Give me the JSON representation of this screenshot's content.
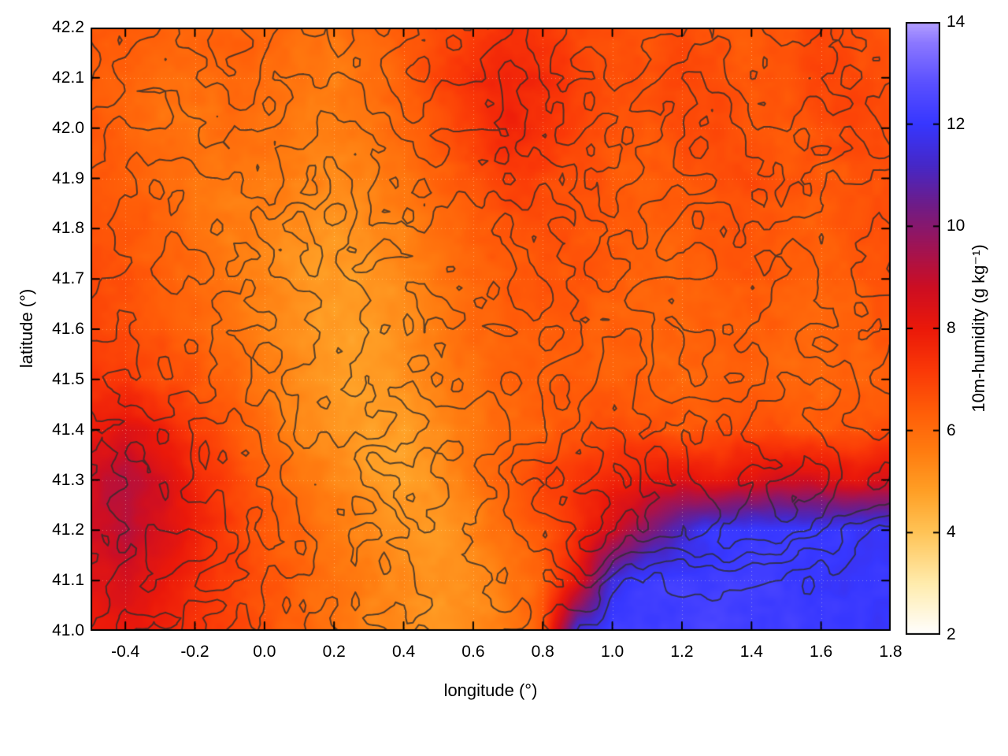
{
  "chart_data": {
    "type": "heatmap",
    "title": "",
    "xlabel": "longitude (°)",
    "ylabel": "latitude (°)",
    "colorbar_label": "10m-humidity (g kg⁻¹)",
    "x_range": [
      -0.5,
      1.8
    ],
    "y_range": [
      41.0,
      42.2
    ],
    "colorbar_range": [
      2,
      14
    ],
    "grid_on": true,
    "x_ticks": {
      "values": [
        -0.4,
        -0.2,
        0.0,
        0.2,
        0.4,
        0.6,
        0.8,
        1.0,
        1.2,
        1.4,
        1.6,
        1.8
      ],
      "labels": [
        "-0.4",
        "-0.2",
        "0.0",
        "0.2",
        "0.4",
        "0.6",
        "0.8",
        "1.0",
        "1.2",
        "1.4",
        "1.6",
        "1.8"
      ]
    },
    "y_ticks": {
      "values": [
        41.0,
        41.1,
        41.2,
        41.3,
        41.4,
        41.5,
        41.6,
        41.7,
        41.8,
        41.9,
        42.0,
        42.1,
        42.2
      ],
      "labels": [
        "41.0",
        "41.1",
        "41.2",
        "41.3",
        "41.4",
        "41.5",
        "41.6",
        "41.7",
        "41.8",
        "41.9",
        "42.0",
        "42.1",
        "42.2"
      ]
    },
    "colorbar_ticks": {
      "values": [
        2,
        4,
        6,
        8,
        10,
        12,
        14
      ],
      "labels": [
        "2",
        "4",
        "6",
        "8",
        "10",
        "12",
        "14"
      ]
    },
    "palette_stops": [
      [
        2.0,
        255,
        255,
        255
      ],
      [
        3.0,
        255,
        236,
        173
      ],
      [
        4.0,
        255,
        196,
        87
      ],
      [
        4.8,
        255,
        160,
        38
      ],
      [
        5.6,
        255,
        124,
        16
      ],
      [
        6.4,
        255,
        92,
        8
      ],
      [
        7.2,
        250,
        56,
        7
      ],
      [
        8.0,
        235,
        25,
        10
      ],
      [
        8.8,
        205,
        14,
        35
      ],
      [
        9.6,
        160,
        20,
        85
      ],
      [
        10.4,
        112,
        28,
        135
      ],
      [
        11.2,
        70,
        40,
        200
      ],
      [
        12.0,
        55,
        55,
        255
      ],
      [
        12.8,
        90,
        80,
        255
      ],
      [
        13.6,
        140,
        120,
        255
      ],
      [
        14.0,
        180,
        160,
        255
      ]
    ],
    "humidity_grid": {
      "lon": [
        -0.5,
        -0.4,
        -0.3,
        -0.2,
        -0.1,
        0.0,
        0.1,
        0.2,
        0.3,
        0.4,
        0.5,
        0.6,
        0.7,
        0.8,
        0.9,
        1.0,
        1.1,
        1.2,
        1.3,
        1.4,
        1.5,
        1.6,
        1.7,
        1.8
      ],
      "lat_top_to_bottom": [
        42.2,
        42.1,
        42.0,
        41.9,
        41.8,
        41.7,
        41.6,
        41.5,
        41.4,
        41.3,
        41.2,
        41.1,
        41.0
      ],
      "values": [
        [
          6.6,
          6.4,
          6.2,
          6.1,
          6.3,
          6.2,
          5.9,
          5.8,
          6.1,
          6.4,
          6.7,
          7.1,
          7.4,
          7.2,
          6.9,
          6.7,
          6.6,
          6.8,
          6.6,
          6.4,
          6.6,
          6.9,
          6.7,
          6.5
        ],
        [
          6.4,
          6.2,
          6.0,
          5.9,
          6.1,
          6.0,
          5.7,
          5.6,
          5.9,
          6.3,
          6.9,
          7.4,
          7.7,
          7.5,
          7.0,
          6.7,
          6.6,
          6.9,
          6.8,
          6.5,
          6.6,
          7.0,
          6.8,
          6.6
        ],
        [
          6.5,
          6.2,
          5.9,
          5.8,
          5.9,
          5.9,
          5.6,
          5.5,
          5.7,
          6.1,
          6.6,
          7.2,
          7.8,
          7.4,
          6.9,
          6.6,
          6.5,
          6.7,
          6.9,
          6.6,
          6.4,
          6.7,
          6.9,
          6.7
        ],
        [
          6.6,
          6.3,
          6.0,
          5.8,
          5.7,
          5.7,
          5.5,
          5.3,
          5.5,
          5.8,
          6.2,
          6.7,
          7.1,
          6.9,
          6.7,
          6.5,
          6.3,
          6.5,
          6.7,
          6.8,
          6.5,
          6.4,
          6.6,
          6.8
        ],
        [
          6.7,
          6.5,
          6.2,
          5.9,
          5.6,
          5.5,
          5.2,
          5.0,
          5.2,
          5.5,
          5.9,
          6.3,
          6.6,
          6.7,
          6.6,
          6.4,
          6.2,
          6.3,
          6.5,
          6.6,
          6.4,
          6.3,
          6.5,
          6.7
        ],
        [
          6.8,
          6.6,
          6.3,
          6.0,
          5.7,
          5.4,
          5.0,
          4.9,
          5.0,
          5.3,
          5.7,
          6.1,
          6.4,
          6.5,
          6.5,
          6.3,
          6.2,
          6.2,
          6.4,
          6.5,
          6.3,
          6.2,
          6.4,
          6.6
        ],
        [
          6.9,
          6.7,
          6.5,
          6.2,
          5.9,
          5.5,
          5.1,
          4.9,
          4.9,
          5.2,
          5.6,
          6.0,
          6.3,
          6.4,
          6.4,
          6.3,
          6.2,
          6.1,
          6.3,
          6.4,
          6.2,
          6.1,
          6.3,
          6.5
        ],
        [
          7.3,
          7.1,
          6.8,
          6.5,
          6.1,
          5.7,
          5.2,
          4.9,
          4.8,
          5.1,
          5.5,
          5.9,
          6.2,
          6.3,
          6.4,
          6.3,
          6.2,
          6.1,
          6.2,
          6.3,
          6.1,
          6.0,
          6.2,
          6.4
        ],
        [
          7.9,
          8.4,
          7.8,
          7.1,
          6.5,
          5.9,
          5.4,
          5.1,
          4.8,
          4.9,
          5.3,
          5.7,
          6.0,
          6.3,
          6.6,
          6.8,
          6.7,
          6.5,
          6.6,
          6.8,
          6.6,
          6.4,
          6.6,
          6.8
        ],
        [
          8.8,
          9.3,
          8.6,
          7.7,
          6.9,
          6.3,
          5.8,
          5.4,
          5.0,
          4.8,
          5.2,
          5.7,
          6.3,
          7.0,
          7.3,
          7.6,
          8.0,
          8.3,
          8.0,
          8.4,
          8.8,
          8.5,
          8.2,
          8.6
        ],
        [
          8.7,
          9.2,
          8.5,
          7.8,
          7.1,
          6.5,
          6.1,
          5.7,
          5.4,
          5.1,
          5.0,
          5.4,
          6.0,
          6.6,
          7.4,
          8.6,
          10.0,
          11.3,
          12.0,
          12.1,
          12.1,
          12.0,
          12.0,
          11.9
        ],
        [
          8.3,
          8.6,
          8.1,
          7.6,
          7.1,
          6.6,
          6.2,
          5.8,
          5.5,
          5.3,
          5.1,
          5.3,
          5.6,
          6.2,
          8.0,
          11.5,
          12.2,
          12.2,
          12.2,
          12.2,
          12.1,
          12.1,
          12.0,
          12.0
        ],
        [
          8.0,
          8.2,
          7.8,
          7.4,
          7.0,
          6.6,
          6.2,
          5.8,
          5.5,
          5.2,
          5.0,
          5.2,
          5.5,
          6.5,
          11.5,
          12.2,
          12.3,
          12.3,
          12.3,
          12.2,
          12.2,
          12.1,
          12.1,
          12.0
        ]
      ]
    },
    "contours": {
      "line_color": "rgba(45,45,45,0.8)",
      "levels": [
        340,
        430,
        520,
        610,
        700,
        790
      ],
      "terrain_grid": [
        [
          850,
          780,
          690,
          720,
          810,
          740,
          620,
          580,
          640,
          730,
          820,
          760,
          680,
          740,
          860,
          920,
          840,
          760,
          700,
          760,
          830,
          780,
          720,
          680
        ],
        [
          780,
          700,
          600,
          640,
          730,
          660,
          560,
          520,
          590,
          680,
          740,
          680,
          600,
          660,
          780,
          840,
          760,
          680,
          640,
          700,
          760,
          700,
          640,
          620
        ],
        [
          700,
          620,
          540,
          570,
          650,
          600,
          510,
          480,
          540,
          620,
          660,
          610,
          540,
          600,
          700,
          760,
          690,
          620,
          580,
          640,
          690,
          640,
          590,
          570
        ],
        [
          620,
          550,
          480,
          510,
          580,
          540,
          460,
          440,
          490,
          560,
          600,
          550,
          490,
          540,
          630,
          690,
          620,
          560,
          530,
          580,
          630,
          580,
          540,
          520
        ],
        [
          560,
          500,
          440,
          460,
          520,
          480,
          420,
          400,
          450,
          500,
          540,
          500,
          440,
          490,
          570,
          620,
          560,
          510,
          480,
          530,
          570,
          530,
          490,
          480
        ],
        [
          520,
          460,
          410,
          430,
          480,
          440,
          390,
          370,
          410,
          460,
          500,
          460,
          410,
          450,
          520,
          570,
          520,
          470,
          450,
          490,
          530,
          490,
          460,
          450
        ],
        [
          560,
          490,
          430,
          460,
          510,
          470,
          410,
          390,
          430,
          480,
          520,
          480,
          430,
          470,
          550,
          600,
          540,
          490,
          470,
          510,
          550,
          510,
          480,
          470
        ],
        [
          620,
          540,
          470,
          500,
          560,
          510,
          440,
          420,
          460,
          520,
          560,
          510,
          460,
          510,
          590,
          650,
          580,
          530,
          500,
          550,
          590,
          550,
          510,
          500
        ],
        [
          690,
          600,
          520,
          550,
          610,
          560,
          480,
          450,
          500,
          560,
          610,
          560,
          500,
          560,
          650,
          710,
          640,
          580,
          550,
          600,
          650,
          600,
          560,
          550
        ],
        [
          750,
          660,
          570,
          600,
          660,
          600,
          520,
          490,
          540,
          600,
          650,
          600,
          540,
          610,
          710,
          770,
          700,
          630,
          600,
          650,
          700,
          650,
          610,
          600
        ],
        [
          700,
          620,
          540,
          570,
          630,
          570,
          500,
          470,
          520,
          570,
          620,
          570,
          520,
          590,
          680,
          720,
          650,
          600,
          570,
          620,
          640,
          550,
          420,
          300
        ],
        [
          640,
          570,
          500,
          530,
          590,
          530,
          470,
          440,
          490,
          540,
          580,
          530,
          490,
          550,
          560,
          430,
          330,
          360,
          390,
          360,
          320,
          270,
          220,
          170
        ],
        [
          590,
          530,
          470,
          500,
          550,
          500,
          440,
          410,
          460,
          510,
          540,
          500,
          460,
          420,
          280,
          180,
          140,
          160,
          180,
          160,
          140,
          120,
          110,
          100
        ]
      ]
    },
    "colors": {
      "background": "#ffffff",
      "border": "#000000",
      "grid_dots": "rgba(255,255,210,0.4)"
    }
  }
}
